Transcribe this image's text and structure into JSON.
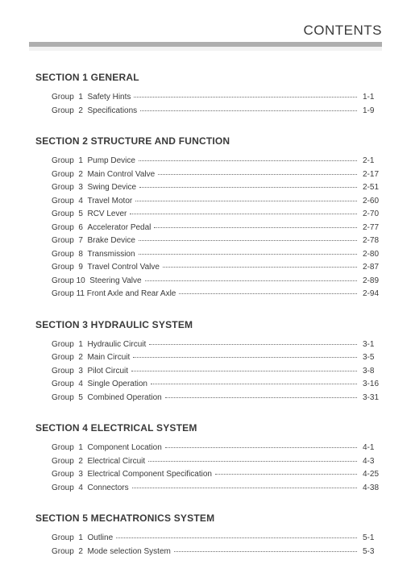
{
  "header": {
    "title": "CONTENTS"
  },
  "sections": [
    {
      "title": "SECTION 1  GENERAL",
      "groups": [
        {
          "prefix": "Group  1  ",
          "name": "Safety Hints",
          "page": "1-1"
        },
        {
          "prefix": "Group  2  ",
          "name": "Specifications",
          "page": "1-9"
        }
      ]
    },
    {
      "title": "SECTION 2  STRUCTURE AND FUNCTION",
      "groups": [
        {
          "prefix": "Group  1  ",
          "name": "Pump Device",
          "page": "2-1"
        },
        {
          "prefix": "Group  2  ",
          "name": "Main Control Valve",
          "page": "2-17"
        },
        {
          "prefix": "Group  3  ",
          "name": "Swing Device",
          "page": "2-51"
        },
        {
          "prefix": "Group  4  ",
          "name": "Travel Motor",
          "page": "2-60"
        },
        {
          "prefix": "Group  5  ",
          "name": "RCV Lever",
          "page": "2-70"
        },
        {
          "prefix": "Group  6  ",
          "name": "Accelerator Pedal",
          "page": "2-77"
        },
        {
          "prefix": "Group  7  ",
          "name": "Brake Device",
          "page": "2-78"
        },
        {
          "prefix": "Group  8  ",
          "name": "Transmission",
          "page": "2-80"
        },
        {
          "prefix": "Group  9  ",
          "name": "Travel Control Valve",
          "page": "2-87"
        },
        {
          "prefix": "Group 10  ",
          "name": "Steering Valve",
          "page": "2-89"
        },
        {
          "prefix": "Group 11 ",
          "name": "Front Axle and Rear Axle",
          "page": "2-94"
        }
      ]
    },
    {
      "title": "SECTION 3  HYDRAULIC SYSTEM",
      "groups": [
        {
          "prefix": "Group  1  ",
          "name": "Hydraulic Circuit",
          "page": "3-1"
        },
        {
          "prefix": "Group  2  ",
          "name": "Main Circuit",
          "page": "3-5"
        },
        {
          "prefix": "Group  3  ",
          "name": "Pilot Circuit",
          "page": "3-8"
        },
        {
          "prefix": "Group  4  ",
          "name": "Single Operation",
          "page": "3-16"
        },
        {
          "prefix": "Group  5  ",
          "name": "Combined Operation",
          "page": "3-31"
        }
      ]
    },
    {
      "title": "SECTION 4  ELECTRICAL SYSTEM",
      "groups": [
        {
          "prefix": "Group  1  ",
          "name": "Component Location",
          "page": "4-1"
        },
        {
          "prefix": "Group  2  ",
          "name": "Electrical Circuit",
          "page": "4-3"
        },
        {
          "prefix": "Group  3  ",
          "name": "Electrical Component Specification",
          "page": "4-25"
        },
        {
          "prefix": "Group  4  ",
          "name": "Connectors",
          "page": "4-38"
        }
      ]
    },
    {
      "title": "SECTION 5  MECHATRONICS SYSTEM",
      "groups": [
        {
          "prefix": "Group  1  ",
          "name": "Outline",
          "page": "5-1"
        },
        {
          "prefix": "Group  2  ",
          "name": "Mode selection System",
          "page": "5-3"
        }
      ]
    }
  ],
  "colors": {
    "text": "#3a3a3a",
    "bar_dark": "#aeaeae",
    "bar_light": "#f2f2f2",
    "background": "#ffffff",
    "dots": "#6b6b6b"
  },
  "typography": {
    "header_fontsize": 17,
    "section_fontsize": 12,
    "row_fontsize": 10,
    "font_family": "Arial"
  }
}
